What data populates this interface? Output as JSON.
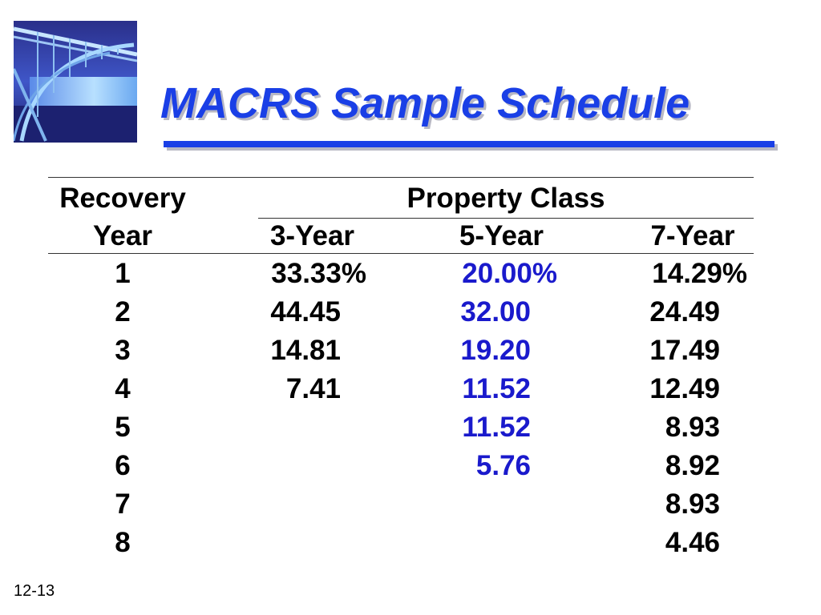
{
  "title": "MACRS Sample Schedule",
  "header": {
    "recovery": "Recovery",
    "year": "Year",
    "property_class": "Property Class",
    "classes": [
      "3-Year",
      "5-Year",
      "7-Year"
    ]
  },
  "rows": [
    {
      "year": "1",
      "y3": "33.33%",
      "y5": "20.00%",
      "y7": "14.29%"
    },
    {
      "year": "2",
      "y3": "44.45",
      "y5": "32.00",
      "y7": "24.49"
    },
    {
      "year": "3",
      "y3": "14.81",
      "y5": "19.20",
      "y7": "17.49"
    },
    {
      "year": "4",
      "y3": "7.41",
      "y5": "11.52",
      "y7": "12.49"
    },
    {
      "year": "5",
      "y3": "",
      "y5": "11.52",
      "y7": "8.93"
    },
    {
      "year": "6",
      "y3": "",
      "y5": "5.76",
      "y7": "8.92"
    },
    {
      "year": "7",
      "y3": "",
      "y5": "",
      "y7": "8.93"
    },
    {
      "year": "8",
      "y3": "",
      "y5": "",
      "y7": "4.46"
    }
  ],
  "slide_number": "12-13",
  "colors": {
    "title": "#1a3fe6",
    "five_year": "#1a1acc"
  },
  "logo_icon": "bridge-photo-icon"
}
